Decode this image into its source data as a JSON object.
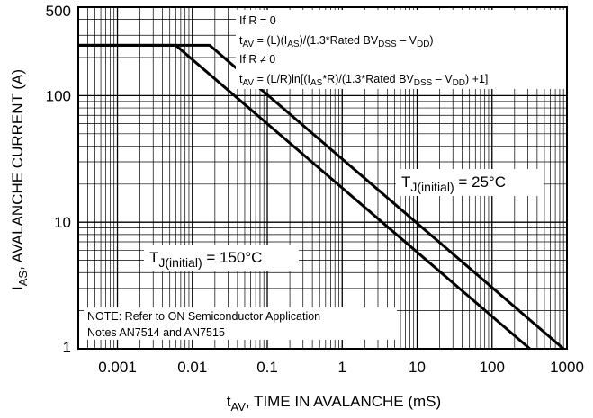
{
  "chart_data": {
    "type": "line",
    "xscale": "log",
    "yscale": "log",
    "xlim": [
      0.0003,
      1000
    ],
    "ylim": [
      1,
      500
    ],
    "grid": true,
    "xticks": [
      "0.001",
      "0.01",
      "0.1",
      "1",
      "10",
      "100",
      "1000"
    ],
    "xtick_values": [
      0.001,
      0.01,
      0.1,
      1,
      10,
      100,
      1000
    ],
    "yticks": [
      "1",
      "10",
      "100",
      "500"
    ],
    "ytick_values": [
      1,
      10,
      100,
      500
    ],
    "xlabel_main": "t",
    "xlabel_sub": "AV",
    "xlabel_rest": ", TIME IN AVALANCHE (mS)",
    "ylabel_main": "I",
    "ylabel_sub": "AS",
    "ylabel_rest": ", AVALANCHE CURRENT (A)",
    "series": [
      {
        "label_main": "T",
        "label_sub": "J(initial)",
        "label_rest": " = 25°C",
        "x": [
          0.0003,
          0.017,
          900
        ],
        "y": [
          250,
          250,
          1
        ]
      },
      {
        "label_main": "T",
        "label_sub": "J(initial)",
        "label_rest": " = 150°C",
        "x": [
          0.0003,
          0.006,
          320
        ],
        "y": [
          250,
          250,
          1
        ]
      }
    ],
    "formula_box": {
      "line1": "If R = 0",
      "line2_main": "t",
      "line2_sub": "AV",
      "line2_a": " = (L)(I",
      "line2_b": "AS",
      "line2_c": ")/(1.3*Rated BV",
      "line2_d": "DSS",
      "line2_e": " – V",
      "line2_f": "DD",
      "line2_g": ")",
      "line3": "If R ≠ 0",
      "line4_main": "t",
      "line4_sub": "AV",
      "line4_a": " = (L/R)ln[(I",
      "line4_b": "AS",
      "line4_c": "*R)/(1.3*Rated BV",
      "line4_d": "DSS",
      "line4_e": " – V",
      "line4_f": "DD",
      "line4_g": ") +1]"
    },
    "note_line1": "NOTE: Refer to ON Semiconductor Application",
    "note_line2": "Notes AN7514 and AN7515"
  }
}
